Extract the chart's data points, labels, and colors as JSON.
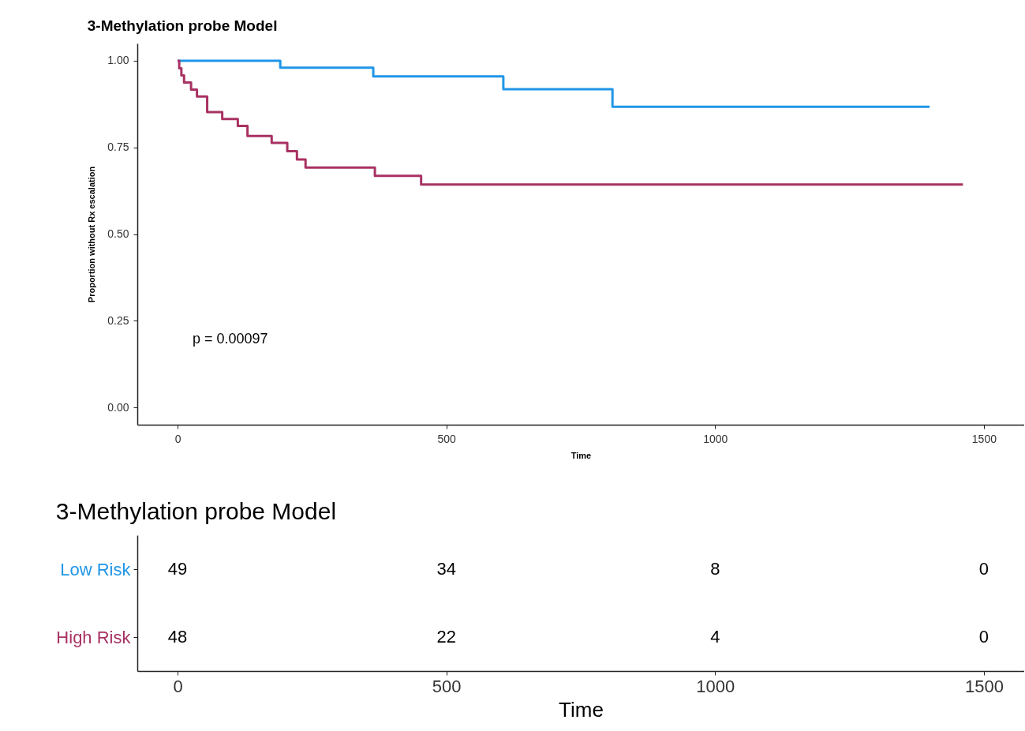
{
  "chart_data": [
    {
      "type": "step",
      "title": "3-Methylation probe Model",
      "xlabel": "Time",
      "ylabel": "Proportion without Rx escalation",
      "xlim": [
        -75,
        1575
      ],
      "xticks": [
        0,
        500,
        1000,
        1500
      ],
      "ylim": [
        -0.05,
        1.05
      ],
      "yticks": [
        {
          "value": 0,
          "label": "0.00"
        },
        {
          "value": 0.25,
          "label": "0.25"
        },
        {
          "value": 0.5,
          "label": "0.50"
        },
        {
          "value": 0.75,
          "label": "0.75"
        },
        {
          "value": 1,
          "label": "1.00"
        }
      ],
      "grid": false,
      "annotations": [
        "p = 0.00097"
      ],
      "series": [
        {
          "color": "#2196e8",
          "x": [
            0,
            191,
            364,
            606,
            809,
            1399
          ],
          "values": [
            1.0,
            0.98,
            0.955,
            0.918,
            0.867,
            0.867
          ]
        },
        {
          "color": "#a83263",
          "x": [
            0,
            3,
            7,
            12,
            25,
            36,
            55,
            83,
            112,
            130,
            175,
            204,
            222,
            238,
            367,
            453,
            1461
          ],
          "values": [
            1.0,
            0.978,
            0.958,
            0.937,
            0.917,
            0.897,
            0.852,
            0.832,
            0.812,
            0.783,
            0.763,
            0.739,
            0.715,
            0.692,
            0.668,
            0.643,
            0.643
          ]
        }
      ]
    },
    {
      "type": "heatmap",
      "title": "3-Methylation probe Model",
      "xlabel": "Time",
      "categories": [
        "0",
        "500",
        "1000",
        "1500"
      ],
      "y_categories": [
        "Low Risk",
        "High Risk"
      ],
      "cells": [
        [
          49,
          34,
          8,
          0
        ],
        [
          48,
          22,
          4,
          0
        ]
      ],
      "data_labels": true
    }
  ]
}
